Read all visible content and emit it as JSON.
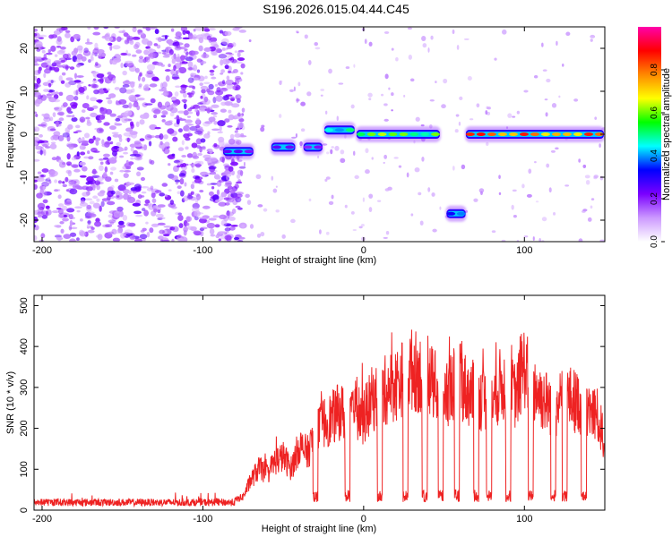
{
  "figure_title": "S196.2026.015.04.44.C45",
  "chart_data": [
    {
      "type": "heatmap",
      "xlabel": "Height of straight line (km)",
      "ylabel": "Frequency (Hz)",
      "xlim": [
        -205,
        150
      ],
      "ylim": [
        -25,
        25
      ],
      "xticks": [
        -200,
        -100,
        0,
        100
      ],
      "yticks": [
        -20,
        -10,
        0,
        10,
        20
      ],
      "colorbar": {
        "label": "Normalized spectral amplitude",
        "range": [
          0.0,
          1.0
        ],
        "ticks": [
          0.0,
          0.2,
          0.4,
          0.6,
          0.8
        ],
        "colors": [
          "#ffffff",
          "#cc99ff",
          "#7a00ff",
          "#0000ff",
          "#00ffff",
          "#00ff00",
          "#ffff00",
          "#ff8800",
          "#ff0000",
          "#ff00aa"
        ]
      },
      "noise_region": {
        "x_range": [
          -205,
          -75
        ],
        "y_range": [
          -25,
          25
        ]
      },
      "track_segments": [
        {
          "x_start": -88,
          "x_end": -68,
          "freq": -4.0,
          "amplitude": 0.3
        },
        {
          "x_start": -58,
          "x_end": -42,
          "freq": -3.0,
          "amplitude": 0.3
        },
        {
          "x_start": -38,
          "x_end": -25,
          "freq": -3.0,
          "amplitude": 0.25
        },
        {
          "x_start": -25,
          "x_end": -5,
          "freq": 1.0,
          "amplitude": 0.55
        },
        {
          "x_start": -5,
          "x_end": 48,
          "freq": 0.0,
          "amplitude": 0.65
        },
        {
          "x_start": 51,
          "x_end": 64,
          "freq": -18.5,
          "amplitude": 0.45
        },
        {
          "x_start": 63,
          "x_end": 150,
          "freq": 0.0,
          "amplitude": 0.9
        }
      ]
    },
    {
      "type": "line",
      "xlabel": "Height of straight line (km)",
      "ylabel": "SNR (10 * v/v)",
      "xlim": [
        -205,
        150
      ],
      "ylim": [
        0,
        525
      ],
      "xticks": [
        -200,
        -100,
        0,
        100
      ],
      "yticks": [
        0,
        100,
        200,
        300,
        400,
        500
      ],
      "series": [
        {
          "name": "SNR",
          "color": "#ee2222",
          "x": [
            -205,
            -190,
            -175,
            -160,
            -145,
            -130,
            -115,
            -100,
            -85,
            -75,
            -70,
            -65,
            -60,
            -55,
            -50,
            -45,
            -40,
            -35,
            -30,
            -25,
            -20,
            -15,
            -10,
            -5,
            0,
            5,
            10,
            15,
            20,
            25,
            30,
            35,
            40,
            45,
            50,
            55,
            60,
            65,
            70,
            75,
            80,
            85,
            90,
            95,
            100,
            105,
            110,
            115,
            120,
            125,
            130,
            135,
            140,
            145,
            150
          ],
          "values": [
            15,
            18,
            16,
            15,
            14,
            15,
            13,
            14,
            18,
            35,
            80,
            110,
            95,
            130,
            140,
            110,
            170,
            150,
            200,
            230,
            240,
            260,
            250,
            270,
            240,
            290,
            300,
            320,
            330,
            350,
            370,
            360,
            350,
            320,
            300,
            330,
            340,
            310,
            300,
            290,
            280,
            330,
            320,
            300,
            380,
            330,
            300,
            280,
            270,
            300,
            290,
            280,
            260,
            250,
            180
          ]
        }
      ],
      "dropouts_x": [
        -30,
        -10,
        10,
        26,
        38,
        48,
        58,
        70,
        78,
        90,
        104,
        118,
        125,
        137
      ]
    }
  ]
}
